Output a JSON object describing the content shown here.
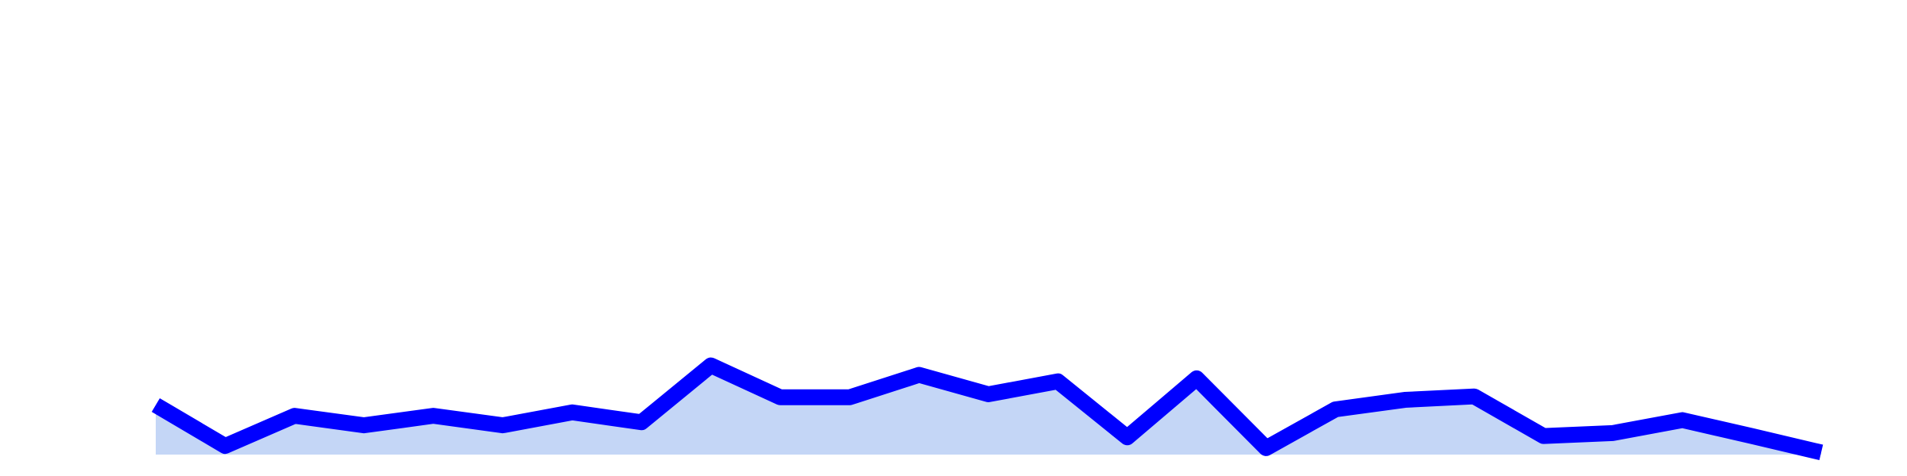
{
  "chart_data": {
    "type": "area",
    "title": "",
    "xlabel": "",
    "ylabel": "",
    "grid": false,
    "legend": "none",
    "x": [
      0,
      1,
      2,
      3,
      4,
      5,
      6,
      7,
      8,
      9,
      10,
      11,
      12,
      13,
      14,
      15,
      16,
      17,
      18,
      19,
      20,
      21,
      22,
      23,
      24
    ],
    "ylim": [
      0,
      100
    ],
    "series": [
      {
        "values": [
          11.5,
          2.0,
          9.0,
          6.8,
          9.0,
          6.8,
          9.8,
          7.5,
          20.7,
          13.3,
          13.3,
          18.5,
          14.0,
          17.0,
          4.0,
          17.7,
          1.5,
          10.5,
          12.7,
          13.5,
          4.3,
          5.0,
          8.0,
          4.3,
          0.5
        ],
        "line_color": "#0000ff",
        "fill_color": "#c4d6f6"
      }
    ]
  }
}
